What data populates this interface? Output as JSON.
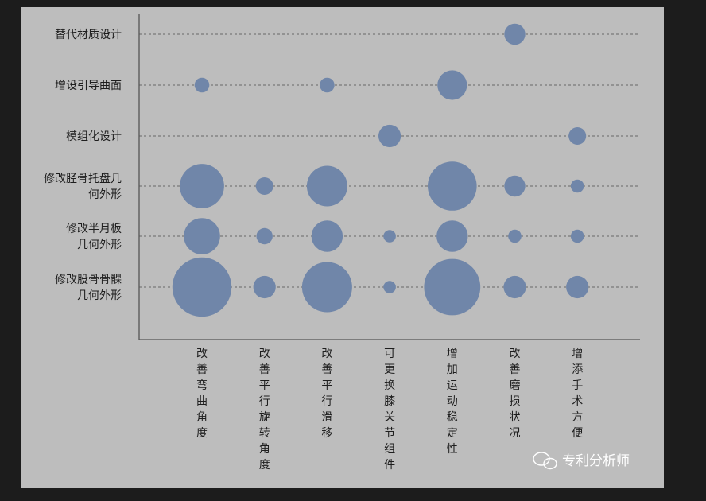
{
  "chart_data": {
    "type": "bubble",
    "title": "",
    "y_categories": [
      [
        "替代材质设计"
      ],
      [
        "增设引导曲面"
      ],
      [
        "模组化设计"
      ],
      [
        "修改胫骨托盘几",
        "何外形"
      ],
      [
        "修改半月板",
        "几何外形"
      ],
      [
        "修改股骨骨髁",
        "几何外形"
      ]
    ],
    "x_categories": [
      "改善弯曲角度",
      "改善平行旋转角度",
      "改善平行滑移",
      "可更换膝关节组件",
      "增加运动稳定性",
      "改善磨损状况",
      "增添手术方便"
    ],
    "points": [
      {
        "x": "改善磨损状况",
        "y": 0,
        "size": 2
      },
      {
        "x": "改善弯曲角度",
        "y": 1,
        "size": 1
      },
      {
        "x": "改善平行滑移",
        "y": 1,
        "size": 1
      },
      {
        "x": "增加运动稳定性",
        "y": 1,
        "size": 4
      },
      {
        "x": "可更换膝关节组件",
        "y": 2,
        "size": 2.3
      },
      {
        "x": "增添手术方便",
        "y": 2,
        "size": 1.4
      },
      {
        "x": "改善弯曲角度",
        "y": 3,
        "size": 9
      },
      {
        "x": "改善平行旋转角度",
        "y": 3,
        "size": 1.4
      },
      {
        "x": "改善平行滑移",
        "y": 3,
        "size": 7.5
      },
      {
        "x": "增加运动稳定性",
        "y": 3,
        "size": 11
      },
      {
        "x": "改善磨损状况",
        "y": 3,
        "size": 2
      },
      {
        "x": "增添手术方便",
        "y": 3,
        "size": 0.8
      },
      {
        "x": "改善弯曲角度",
        "y": 4,
        "size": 6
      },
      {
        "x": "改善平行旋转角度",
        "y": 4,
        "size": 1.2
      },
      {
        "x": "改善平行滑移",
        "y": 4,
        "size": 4.5
      },
      {
        "x": "可更换膝关节组件",
        "y": 4,
        "size": 0.7
      },
      {
        "x": "增加运动稳定性",
        "y": 4,
        "size": 4.5
      },
      {
        "x": "改善磨损状况",
        "y": 4,
        "size": 0.8
      },
      {
        "x": "增添手术方便",
        "y": 4,
        "size": 0.8
      },
      {
        "x": "改善弯曲角度",
        "y": 5,
        "size": 16
      },
      {
        "x": "改善平行旋转角度",
        "y": 5,
        "size": 2.3
      },
      {
        "x": "改善平行滑移",
        "y": 5,
        "size": 11.5
      },
      {
        "x": "可更换膝关节组件",
        "y": 5,
        "size": 0.7
      },
      {
        "x": "增加运动稳定性",
        "y": 5,
        "size": 14.5
      },
      {
        "x": "改善磨损状况",
        "y": 5,
        "size": 2.3
      },
      {
        "x": "增添手术方便",
        "y": 5,
        "size": 2.3
      }
    ],
    "bubble_color": "#7086a9",
    "gridlines": "dashed horizontal"
  },
  "watermark": {
    "text": "专利分析师",
    "icon": "wechat-icon"
  }
}
